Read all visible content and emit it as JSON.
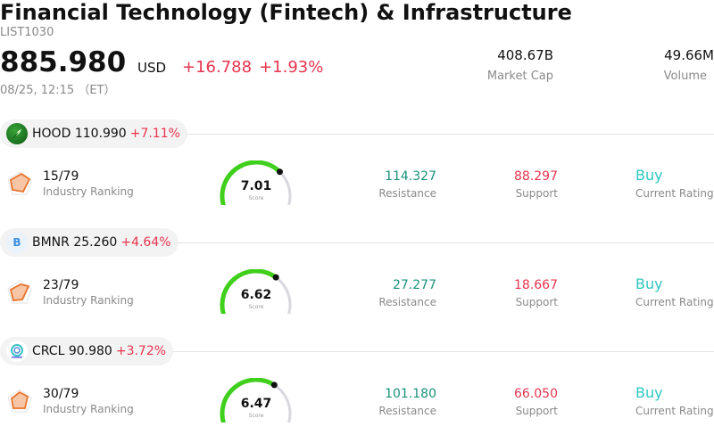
{
  "header": {
    "title": "Financial Technology (Fintech) & Infrastructure",
    "code": "LIST1030",
    "price": "885.980",
    "currency": "USD",
    "change_abs": "+16.788",
    "change_pct": "+1.93%",
    "timestamp": "08/25, 12:15 （ET）",
    "market_cap": {
      "value": "408.67B",
      "label": "Market Cap"
    },
    "volume": {
      "value": "49.66M",
      "label": "Volume"
    }
  },
  "colors": {
    "up_red": "#e8344e",
    "resistance_green": "#19927b",
    "rating_teal": "#2ec8c0",
    "gauge_green": "#3fcf1c",
    "gauge_track": "#d8d8de"
  },
  "stocks": [
    {
      "symbol": "HOOD",
      "price": "110.990",
      "pct": "+7.11%",
      "logo": "feather-icon",
      "ranking": "15/79",
      "ranking_label": "Industry Ranking",
      "score": "7.01",
      "score_value": 7.01,
      "score_label": "Score",
      "resistance": "114.327",
      "resistance_label": "Resistance",
      "support": "88.297",
      "support_label": "Support",
      "rating": "Buy",
      "rating_label": "Current Rating"
    },
    {
      "symbol": "BMNR",
      "price": "25.260",
      "pct": "+4.64%",
      "logo": "bmnr-b-icon",
      "logo_text": "B",
      "ranking": "23/79",
      "ranking_label": "Industry Ranking",
      "score": "6.62",
      "score_value": 6.62,
      "score_label": "Score",
      "resistance": "27.277",
      "resistance_label": "Resistance",
      "support": "18.667",
      "support_label": "Support",
      "rating": "Buy",
      "rating_label": "Current Rating"
    },
    {
      "symbol": "CRCL",
      "price": "90.980",
      "pct": "+3.72%",
      "logo": "circle-logo-icon",
      "ranking": "30/79",
      "ranking_label": "Industry Ranking",
      "score": "6.47",
      "score_value": 6.47,
      "score_label": "Score",
      "resistance": "101.180",
      "resistance_label": "Resistance",
      "support": "66.050",
      "support_label": "Support",
      "rating": "Buy",
      "rating_label": "Current Rating"
    }
  ]
}
